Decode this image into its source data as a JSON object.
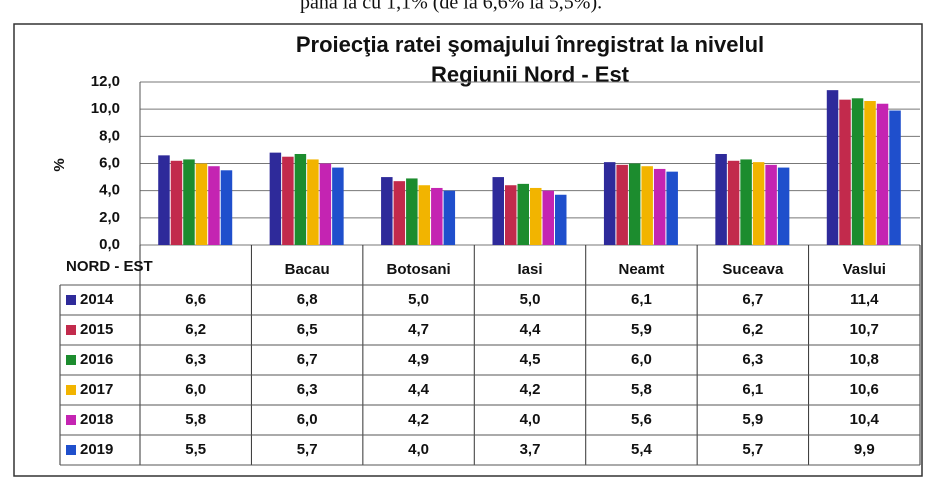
{
  "top_text": "până la cu 1,1% (de la 6,6% la 5,5%).",
  "chart_data": {
    "type": "bar",
    "title": [
      "Proiecţia ratei şomajului înregistrat la nivelul",
      "Regiunii  Nord - Est"
    ],
    "y_label": "%",
    "categories": [
      "NORD - EST",
      "Bacau",
      "Botosani",
      "Iasi",
      "Neamt",
      "Suceava",
      "Vaslui"
    ],
    "ylim": [
      0,
      12
    ],
    "yticks": [
      {
        "value": 0,
        "label": "0,0"
      },
      {
        "value": 2,
        "label": "2,0"
      },
      {
        "value": 4,
        "label": "4,0"
      },
      {
        "value": 6,
        "label": "6,0"
      },
      {
        "value": 8,
        "label": "8,0"
      },
      {
        "value": 10,
        "label": "10,0"
      },
      {
        "value": 12,
        "label": "12,0"
      }
    ],
    "grid": true,
    "series": [
      {
        "name": "2014",
        "color": "#2e2a9a",
        "values": [
          6.6,
          6.8,
          5.0,
          5.0,
          6.1,
          6.7,
          11.4
        ],
        "value_labels": [
          "6,6",
          "6,8",
          "5,0",
          "5,0",
          "6,1",
          "6,7",
          "11,4"
        ]
      },
      {
        "name": "2015",
        "color": "#c22a4c",
        "values": [
          6.2,
          6.5,
          4.7,
          4.4,
          5.9,
          6.2,
          10.7
        ],
        "value_labels": [
          "6,2",
          "6,5",
          "4,7",
          "4,4",
          "5,9",
          "6,2",
          "10,7"
        ]
      },
      {
        "name": "2016",
        "color": "#1c8c2e",
        "values": [
          6.3,
          6.7,
          4.9,
          4.5,
          6.0,
          6.3,
          10.8
        ],
        "value_labels": [
          "6,3",
          "6,7",
          "4,9",
          "4,5",
          "6,0",
          "6,3",
          "10,8"
        ]
      },
      {
        "name": "2017",
        "color": "#f2b400",
        "values": [
          6.0,
          6.3,
          4.4,
          4.2,
          5.8,
          6.1,
          10.6
        ],
        "value_labels": [
          "6,0",
          "6,3",
          "4,4",
          "4,2",
          "5,8",
          "6,1",
          "10,6"
        ]
      },
      {
        "name": "2018",
        "color": "#c424b2",
        "values": [
          5.8,
          6.0,
          4.2,
          4.0,
          5.6,
          5.9,
          10.4
        ],
        "value_labels": [
          "5,8",
          "6,0",
          "4,2",
          "4,0",
          "5,6",
          "5,9",
          "10,4"
        ]
      },
      {
        "name": "2019",
        "color": "#1f4fcc",
        "values": [
          5.5,
          5.7,
          4.0,
          3.7,
          5.4,
          5.7,
          9.9
        ],
        "value_labels": [
          "5,5",
          "5,7",
          "4,0",
          "3,7",
          "5,4",
          "5,7",
          "9,9"
        ]
      }
    ]
  }
}
